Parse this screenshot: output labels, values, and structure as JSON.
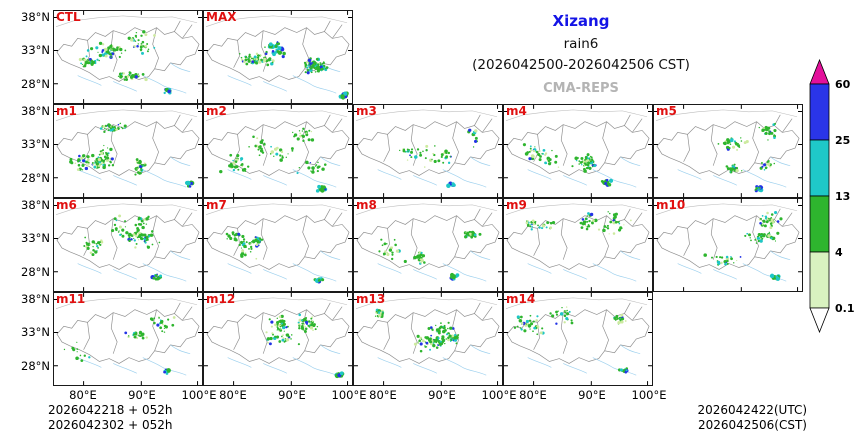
{
  "header": {
    "region": "Xizang",
    "variable": "rain6",
    "valid_period": "(2026042500-2026042506 CST)",
    "model": "CMA-REPS"
  },
  "axes": {
    "lat_ticks": [
      "38°N",
      "33°N",
      "28°N"
    ],
    "lon_ticks": [
      "80°E",
      "90°E",
      "100°E"
    ]
  },
  "panels": [
    {
      "label": "CTL",
      "row": 0,
      "col": 0
    },
    {
      "label": "MAX",
      "row": 0,
      "col": 1
    },
    {
      "label": "m1",
      "row": 1,
      "col": 0
    },
    {
      "label": "m2",
      "row": 1,
      "col": 1
    },
    {
      "label": "m3",
      "row": 1,
      "col": 2
    },
    {
      "label": "m4",
      "row": 1,
      "col": 3
    },
    {
      "label": "m5",
      "row": 1,
      "col": 4
    },
    {
      "label": "m6",
      "row": 2,
      "col": 0
    },
    {
      "label": "m7",
      "row": 2,
      "col": 1
    },
    {
      "label": "m8",
      "row": 2,
      "col": 2
    },
    {
      "label": "m9",
      "row": 2,
      "col": 3
    },
    {
      "label": "m10",
      "row": 2,
      "col": 4
    },
    {
      "label": "m11",
      "row": 3,
      "col": 0
    },
    {
      "label": "m12",
      "row": 3,
      "col": 1
    },
    {
      "label": "m13",
      "row": 3,
      "col": 2
    },
    {
      "label": "m14",
      "row": 3,
      "col": 3
    }
  ],
  "footer": {
    "init_line1": "2026042218 + 052h",
    "init_line2": "2026042302 + 052h",
    "valid_utc": "2026042422(UTC)",
    "valid_cst": "2026042506(CST)"
  },
  "colors": {
    "panel_label": "#e01010",
    "region_title": "#1414e6",
    "model_name": "#b4b4b4",
    "map_border": "#909090",
    "river": "#9ed1ee",
    "precip_light": "#cdeaa0",
    "precip_green": "#2eb52e",
    "precip_cyan": "#1ec6c6",
    "precip_blue": "#2233e6",
    "precip_magenta": "#e3119b"
  },
  "chart_data": {
    "type": "heatmap",
    "title": "Xizang rain6 (2026042500-2026042506 CST)",
    "model": "CMA-REPS",
    "description": "Multi-panel ensemble 6-h accumulated rainfall forecast maps over Xizang",
    "panels": [
      "CTL",
      "MAX",
      "m1",
      "m2",
      "m3",
      "m4",
      "m5",
      "m6",
      "m7",
      "m8",
      "m9",
      "m10",
      "m11",
      "m12",
      "m13",
      "m14"
    ],
    "lat_ticks_deg_n": [
      38,
      33,
      28
    ],
    "lon_ticks_deg_e": [
      80,
      90,
      100
    ],
    "colorbar": {
      "levels": [
        0.1,
        4,
        13,
        25,
        60
      ],
      "labels_top_to_bottom": [
        "60",
        "25",
        "13",
        "4",
        "0.1"
      ],
      "segment_colors_top_to_bottom": [
        "#2a35e8",
        "#1fc8c8",
        "#2eb52e",
        "#d9f2c0"
      ],
      "arrow_top_color": "#e3119b",
      "arrow_bottom_color": "#ffffff"
    },
    "init_times": [
      "2026042218 + 052h",
      "2026042302 + 052h"
    ],
    "valid_time": [
      "2026042422(UTC)",
      "2026042506(CST)"
    ]
  }
}
